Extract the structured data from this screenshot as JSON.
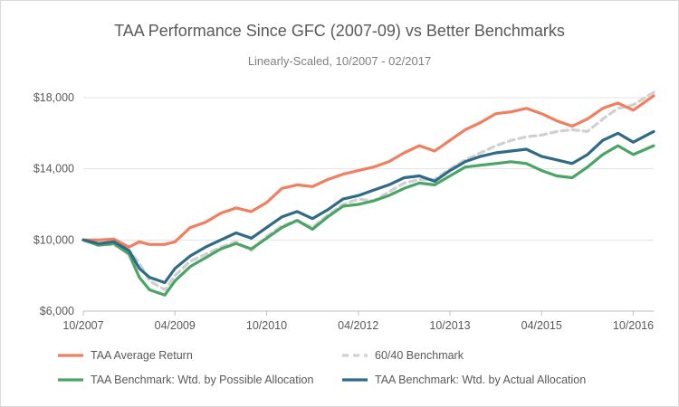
{
  "chart_data": {
    "type": "line",
    "title": "TAA Performance Since GFC (2007-09) vs Better Benchmarks",
    "subtitle": "Linearly-Scaled, 10/2007 - 02/2017",
    "xlabel": "",
    "ylabel": "",
    "x_ticks": [
      "10/2007",
      "04/2009",
      "10/2010",
      "04/2012",
      "10/2013",
      "04/2015",
      "10/2016"
    ],
    "y_ticks": [
      "$6,000",
      "$10,000",
      "$14,000",
      "$18,000"
    ],
    "ylim": [
      6000,
      18000
    ],
    "xlim": [
      "10/2007",
      "02/2017"
    ],
    "grid": "horizontal",
    "legend": "bottom",
    "x": [
      "10/2007",
      "01/2008",
      "04/2008",
      "07/2008",
      "09/2008",
      "11/2008",
      "02/2009",
      "04/2009",
      "07/2009",
      "10/2009",
      "01/2010",
      "04/2010",
      "07/2010",
      "10/2010",
      "01/2011",
      "04/2011",
      "07/2011",
      "10/2011",
      "01/2012",
      "04/2012",
      "07/2012",
      "10/2012",
      "01/2013",
      "04/2013",
      "07/2013",
      "10/2013",
      "01/2014",
      "04/2014",
      "07/2014",
      "10/2014",
      "01/2015",
      "04/2015",
      "07/2015",
      "10/2015",
      "01/2016",
      "04/2016",
      "07/2016",
      "10/2016",
      "02/2017"
    ],
    "series": [
      {
        "name": "TAA Average Return",
        "color": "#f07f5f",
        "dash": false,
        "values": [
          10000,
          10000,
          10050,
          9600,
          9900,
          9750,
          9750,
          9900,
          10700,
          11000,
          11500,
          11800,
          11600,
          12100,
          12900,
          13100,
          13000,
          13400,
          13700,
          13900,
          14100,
          14400,
          14900,
          15300,
          15000,
          15600,
          16200,
          16600,
          17100,
          17200,
          17400,
          17100,
          16700,
          16400,
          16800,
          17400,
          17700,
          17300,
          18100
        ]
      },
      {
        "name": "60/40 Benchmark",
        "color": "#d0d0d0",
        "dash": true,
        "values": [
          10000,
          9800,
          9700,
          9400,
          8700,
          7700,
          7200,
          8000,
          8800,
          9200,
          9600,
          9900,
          9400,
          10200,
          10800,
          11100,
          10700,
          11400,
          12000,
          12300,
          12200,
          12700,
          13200,
          13400,
          13400,
          14000,
          14500,
          14900,
          15300,
          15600,
          15800,
          15900,
          16100,
          16200,
          16100,
          16800,
          17400,
          17600,
          18300
        ]
      },
      {
        "name": "TAA Benchmark: Wtd. by Possible Allocation",
        "color": "#4aa564",
        "dash": false,
        "values": [
          10000,
          9700,
          9800,
          9200,
          7900,
          7200,
          6900,
          7700,
          8500,
          9000,
          9500,
          9800,
          9500,
          10100,
          10700,
          11100,
          10600,
          11300,
          11900,
          12000,
          12200,
          12500,
          12900,
          13200,
          13100,
          13600,
          14100,
          14200,
          14300,
          14400,
          14300,
          13900,
          13600,
          13500,
          14100,
          14800,
          15300,
          14800,
          15300
        ]
      },
      {
        "name": "TAA Benchmark: Wtd. by Actual Allocation",
        "color": "#2f6b87",
        "dash": false,
        "values": [
          10000,
          9800,
          9900,
          9400,
          8400,
          7900,
          7600,
          8400,
          9100,
          9600,
          10000,
          10400,
          10100,
          10700,
          11300,
          11600,
          11200,
          11700,
          12300,
          12500,
          12800,
          13100,
          13500,
          13600,
          13300,
          13900,
          14400,
          14700,
          14900,
          15000,
          15100,
          14700,
          14500,
          14300,
          14800,
          15600,
          16000,
          15500,
          16100
        ]
      }
    ]
  }
}
